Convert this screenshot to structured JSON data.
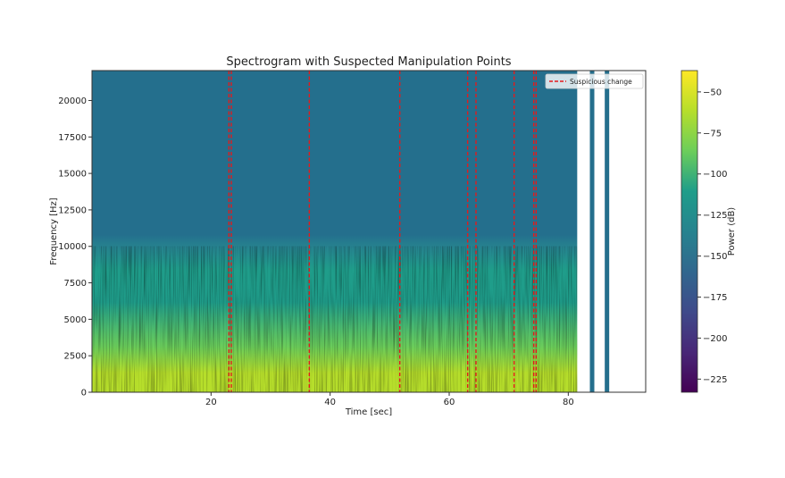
{
  "chart_data": {
    "type": "heatmap",
    "title": "Spectrogram with Suspected Manipulation Points",
    "xlabel": "Time [sec]",
    "ylabel": "Frequency [Hz]",
    "xlim": [
      0,
      93
    ],
    "ylim": [
      0,
      22050
    ],
    "x_ticks": [
      20,
      40,
      60,
      80
    ],
    "y_ticks": [
      0,
      2500,
      5000,
      7500,
      10000,
      12500,
      15000,
      17500,
      20000
    ],
    "spectrogram_extent_sec": 81.5,
    "extra_bars_sec": [
      84.0,
      86.5
    ],
    "grid": false,
    "legend": {
      "position": "top-right",
      "entries": [
        {
          "label": "Suspicious change",
          "style": "dashed",
          "color": "#e41a1c"
        }
      ]
    },
    "suspicious_changes_sec": [
      23.0,
      23.4,
      36.5,
      51.7,
      63.1,
      64.5,
      70.9,
      74.2,
      74.6
    ],
    "series": [
      {
        "name": "Suspicious change",
        "type": "vline",
        "color": "#e41a1c",
        "values": [
          23.0,
          23.4,
          36.5,
          51.7,
          63.1,
          64.5,
          70.9,
          74.2,
          74.6
        ]
      }
    ],
    "colorbar": {
      "label": "Power (dB)",
      "min": -233,
      "max": -37,
      "ticks": [
        -50,
        -75,
        -100,
        -125,
        -150,
        -175,
        -200,
        -225
      ],
      "colormap": "viridis"
    },
    "colors": {
      "background_band": "#246f8d",
      "change_line": "#e41a1c",
      "viridis": [
        "#440154",
        "#482777",
        "#3f4a8a",
        "#31678e",
        "#26838f",
        "#1f9d8a",
        "#6cce5a",
        "#b6de2b",
        "#fee825"
      ]
    }
  }
}
